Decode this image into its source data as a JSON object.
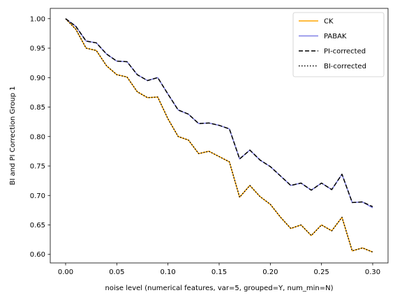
{
  "chart_data": {
    "type": "line",
    "title": "",
    "xlabel": "noise level (numerical features, var=5, grouped=Y, num_min=N)",
    "ylabel": "BI and PI Correction Group 1",
    "xlim": [
      -0.015,
      0.315
    ],
    "ylim": [
      0.5855,
      1.0175
    ],
    "xticks": [
      0.0,
      0.05,
      0.1,
      0.15,
      0.2,
      0.25,
      0.3
    ],
    "xtick_labels": [
      "0.00",
      "0.05",
      "0.10",
      "0.15",
      "0.20",
      "0.25",
      "0.30"
    ],
    "yticks": [
      0.6,
      0.65,
      0.7,
      0.75,
      0.8,
      0.85,
      0.9,
      0.95,
      1.0
    ],
    "ytick_labels": [
      "0.60",
      "0.65",
      "0.70",
      "0.75",
      "0.80",
      "0.85",
      "0.90",
      "0.95",
      "1.00"
    ],
    "grid": false,
    "legend_position": "top-right",
    "x": [
      0.0,
      0.01,
      0.02,
      0.03,
      0.04,
      0.05,
      0.06,
      0.07,
      0.08,
      0.09,
      0.1,
      0.11,
      0.12,
      0.13,
      0.14,
      0.15,
      0.16,
      0.17,
      0.18,
      0.19,
      0.2,
      0.21,
      0.22,
      0.23,
      0.24,
      0.25,
      0.26,
      0.27,
      0.28,
      0.29,
      0.3
    ],
    "series": [
      {
        "name": "CK",
        "color": "#ffa500",
        "dash": "solid",
        "values": [
          1.0,
          0.982,
          0.95,
          0.946,
          0.92,
          0.905,
          0.901,
          0.876,
          0.866,
          0.867,
          0.83,
          0.8,
          0.794,
          0.771,
          0.775,
          0.766,
          0.757,
          0.697,
          0.717,
          0.698,
          0.685,
          0.663,
          0.644,
          0.65,
          0.632,
          0.65,
          0.64,
          0.663,
          0.606,
          0.611,
          0.604
        ]
      },
      {
        "name": "PABAK",
        "color": "#8080e6",
        "dash": "solid",
        "values": [
          1.0,
          0.987,
          0.962,
          0.959,
          0.94,
          0.928,
          0.927,
          0.905,
          0.895,
          0.9,
          0.872,
          0.845,
          0.838,
          0.822,
          0.823,
          0.819,
          0.813,
          0.762,
          0.777,
          0.76,
          0.749,
          0.733,
          0.717,
          0.721,
          0.709,
          0.721,
          0.71,
          0.736,
          0.688,
          0.689,
          0.679
        ]
      },
      {
        "name": "PI-corrected",
        "color": "#000000",
        "dash": "dashed",
        "values": [
          1.0,
          0.987,
          0.962,
          0.959,
          0.94,
          0.928,
          0.927,
          0.905,
          0.895,
          0.9,
          0.872,
          0.845,
          0.838,
          0.822,
          0.823,
          0.819,
          0.813,
          0.762,
          0.777,
          0.76,
          0.749,
          0.733,
          0.717,
          0.721,
          0.709,
          0.721,
          0.71,
          0.736,
          0.688,
          0.689,
          0.681
        ]
      },
      {
        "name": "BI-corrected",
        "color": "#000000",
        "dash": "dotted",
        "values": [
          1.0,
          0.982,
          0.95,
          0.946,
          0.92,
          0.905,
          0.901,
          0.876,
          0.866,
          0.867,
          0.83,
          0.8,
          0.794,
          0.771,
          0.775,
          0.766,
          0.757,
          0.697,
          0.717,
          0.698,
          0.685,
          0.663,
          0.644,
          0.65,
          0.632,
          0.65,
          0.64,
          0.663,
          0.606,
          0.611,
          0.604
        ]
      }
    ]
  }
}
